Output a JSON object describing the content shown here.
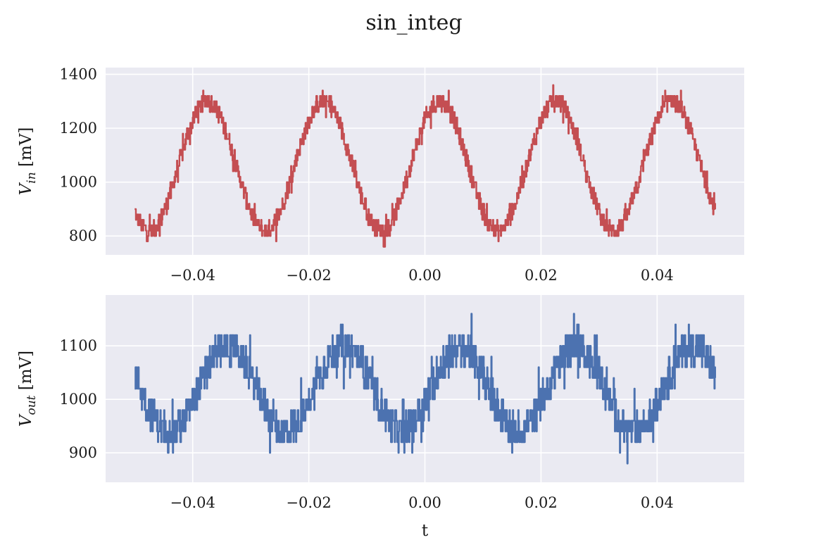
{
  "figure": {
    "title": "sin_integ"
  },
  "chart_data": [
    {
      "type": "line",
      "title": "",
      "xlabel": "",
      "ylabel_main": "V",
      "ylabel_sub": "in",
      "ylabel_unit": " [mV]",
      "xlim": [
        -0.055,
        0.055
      ],
      "ylim": [
        730,
        1425
      ],
      "xticks": [
        -0.04,
        -0.02,
        0.0,
        0.02,
        0.04
      ],
      "xtick_labels": [
        "−0.04",
        "−0.02",
        "0.00",
        "0.02",
        "0.04"
      ],
      "yticks": [
        800,
        1000,
        1200,
        1400
      ],
      "ytick_labels": [
        "800",
        "1000",
        "1200",
        "1400"
      ],
      "grid": true,
      "background": "#eaeaf2",
      "series": [
        {
          "color": "#c44e52",
          "t_start": -0.05,
          "t_end": 0.05,
          "frequency_hz": 50,
          "phase_peak_t": -0.0375,
          "offset_mv": 1060,
          "amplitude_mv": 240,
          "quantization_mv": 20,
          "noise_mv": 40
        }
      ]
    },
    {
      "type": "line",
      "title": "",
      "xlabel": "t",
      "ylabel_main": "V",
      "ylabel_sub": "out",
      "ylabel_unit": " [mV]",
      "xlim": [
        -0.055,
        0.055
      ],
      "ylim": [
        845,
        1195
      ],
      "xticks": [
        -0.04,
        -0.02,
        0.0,
        0.02,
        0.04
      ],
      "xtick_labels": [
        "−0.04",
        "−0.02",
        "0.00",
        "0.02",
        "0.04"
      ],
      "yticks": [
        900,
        1000,
        1100
      ],
      "ytick_labels": [
        "900",
        "1000",
        "1100"
      ],
      "grid": true,
      "background": "#eaeaf2",
      "series": [
        {
          "color": "#4c72b0",
          "t_start": -0.05,
          "t_end": 0.05,
          "frequency_hz": 50,
          "phase_peak_t": -0.034,
          "offset_mv": 1020,
          "amplitude_mv": 80,
          "quantization_mv": 20,
          "noise_mv": 40
        }
      ]
    }
  ]
}
